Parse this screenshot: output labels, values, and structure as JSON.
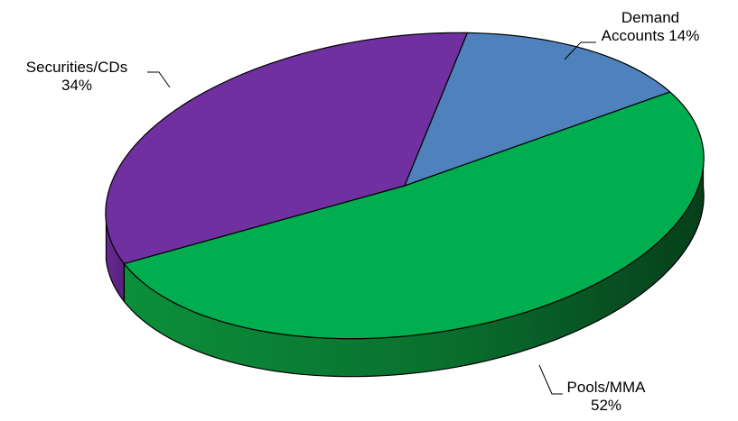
{
  "chart_data": {
    "type": "pie",
    "title": "",
    "slices": [
      {
        "label": "Demand Accounts",
        "value": 14,
        "value_label": "14%",
        "color": "#4F81BD"
      },
      {
        "label": "Pools/MMA",
        "value": 52,
        "value_label": "52%",
        "color": "#00AD4F"
      },
      {
        "label": "Securities/CDs",
        "value": 34,
        "value_label": "34%",
        "color": "#7030A0"
      }
    ],
    "style": "3d",
    "legend": "none",
    "labels": {
      "demand": {
        "line1": "Demand",
        "line2": "Accounts 14%"
      },
      "pools": {
        "line1": "Pools/MMA",
        "line2": "52%"
      },
      "securities": {
        "line1": "Securities/CDs",
        "line2": "34%"
      }
    }
  }
}
